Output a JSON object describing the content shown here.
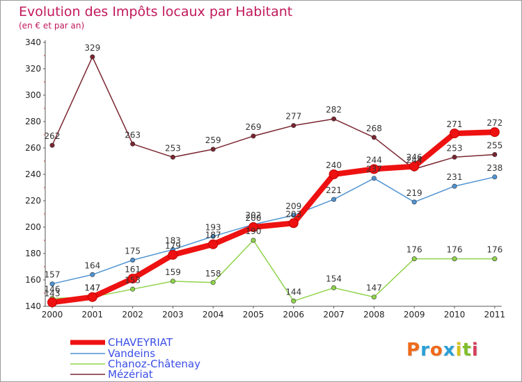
{
  "title": "Evolution des Impôts locaux par Habitant",
  "subtitle": "(en € et par an)",
  "brand": {
    "letters": [
      "P",
      "r",
      "o",
      "x",
      "i",
      "t",
      "i"
    ],
    "colors": [
      "#ee6a1a",
      "#2a9fd6",
      "#ee6a1a",
      "#2a9fd6",
      "#d6c21a",
      "#7fbf2a",
      "#d63f5a"
    ]
  },
  "chart_data": {
    "type": "line",
    "x": [
      "2000",
      "2001",
      "2002",
      "2003",
      "2004",
      "2005",
      "2006",
      "2007",
      "2008",
      "2009",
      "2010",
      "2011"
    ],
    "ylim": [
      140,
      340
    ],
    "yticks": [
      "140",
      "160",
      "180",
      "200",
      "220",
      "240",
      "260",
      "280",
      "300",
      "320",
      "340"
    ],
    "grid": false,
    "legend_position": "bottom-left",
    "series": [
      {
        "name": "CHAVEYRIAT",
        "color": "#ee1111",
        "values": [
          143,
          147,
          161,
          179,
          187,
          200,
          203,
          240,
          244,
          246,
          271,
          272
        ],
        "labels": [
          "143",
          "147",
          "161",
          "179",
          "187",
          "200",
          "203",
          "240",
          "244",
          "246",
          "271",
          "272"
        ]
      },
      {
        "name": "Vandeins",
        "color": "#4f93d2",
        "values": [
          157,
          164,
          175,
          183,
          193,
          202,
          209,
          221,
          237,
          219,
          231,
          238
        ],
        "labels": [
          "157",
          "164",
          "175",
          "183",
          "193",
          "202",
          "209",
          "221",
          "237",
          "219",
          "231",
          "238"
        ]
      },
      {
        "name": "Chanoz-Châtenay",
        "color": "#8fd34a",
        "values": [
          146,
          147,
          153,
          159,
          158,
          190,
          144,
          154,
          147,
          176,
          176,
          176
        ],
        "labels": [
          "146",
          "147",
          "153",
          "159",
          "158",
          "190",
          "144",
          "154",
          "147",
          "176",
          "176",
          "176"
        ]
      },
      {
        "name": "Mézériat",
        "color": "#7a2530",
        "values": [
          262,
          329,
          263,
          253,
          259,
          269,
          277,
          282,
          268,
          244,
          253,
          255
        ],
        "labels": [
          "262",
          "329",
          "263",
          "253",
          "259",
          "269",
          "277",
          "282",
          "268",
          "244",
          "253",
          "255"
        ]
      }
    ]
  }
}
